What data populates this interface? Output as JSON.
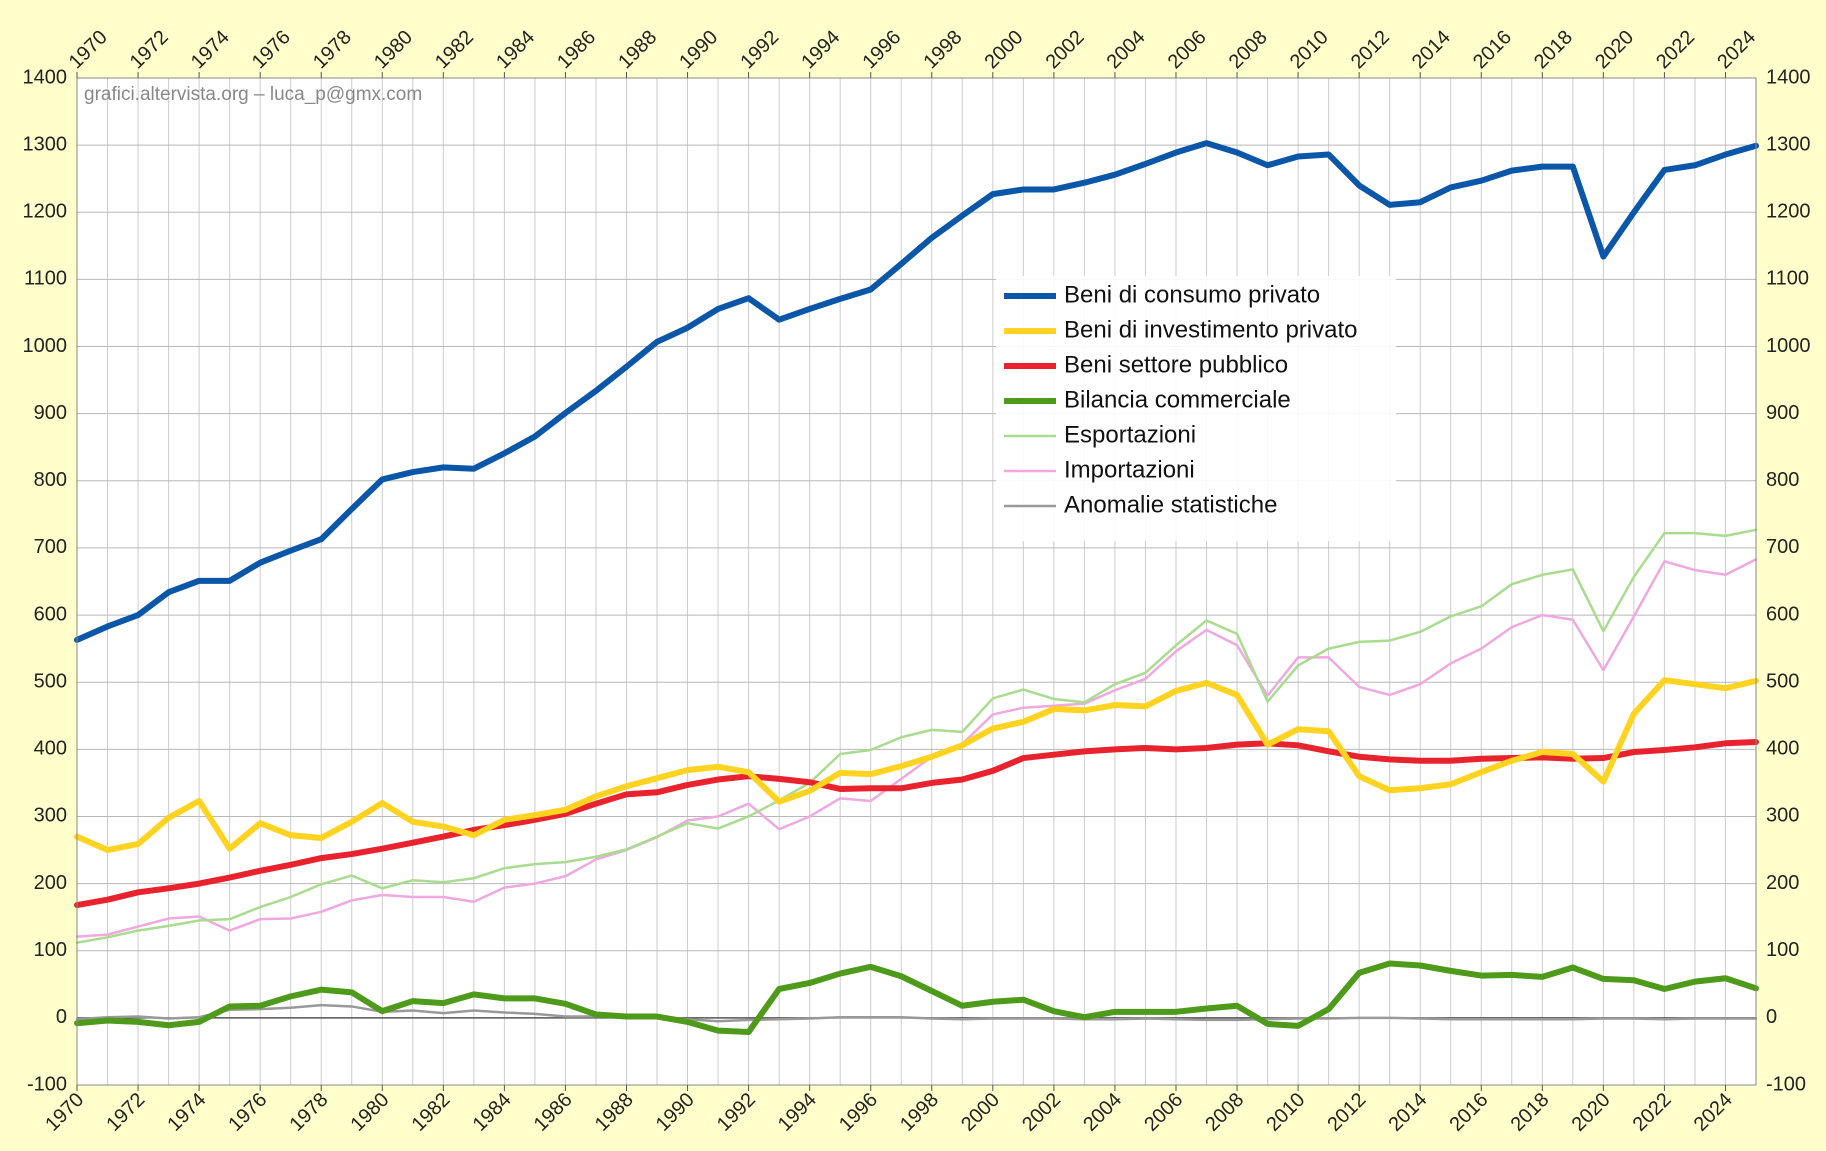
{
  "chart_data": {
    "type": "line",
    "annotation": "grafici.altervista.org – luca_p@gmx.com",
    "x": [
      1970,
      1971,
      1972,
      1973,
      1974,
      1975,
      1976,
      1977,
      1978,
      1979,
      1980,
      1981,
      1982,
      1983,
      1984,
      1985,
      1986,
      1987,
      1988,
      1989,
      1990,
      1991,
      1992,
      1993,
      1994,
      1995,
      1996,
      1997,
      1998,
      1999,
      2000,
      2001,
      2002,
      2003,
      2004,
      2005,
      2006,
      2007,
      2008,
      2009,
      2010,
      2011,
      2012,
      2013,
      2014,
      2015,
      2016,
      2017,
      2018,
      2019,
      2020,
      2021,
      2022,
      2023,
      2024,
      2025
    ],
    "xlim": [
      1970,
      2025
    ],
    "xticks": [
      1970,
      1972,
      1974,
      1976,
      1978,
      1980,
      1982,
      1984,
      1986,
      1988,
      1990,
      1992,
      1994,
      1996,
      1998,
      2000,
      2002,
      2004,
      2006,
      2008,
      2010,
      2012,
      2014,
      2016,
      2018,
      2020,
      2022,
      2024
    ],
    "ylim": [
      -100,
      1400
    ],
    "yticks": [
      -100,
      0,
      100,
      200,
      300,
      400,
      500,
      600,
      700,
      800,
      900,
      1000,
      1100,
      1200,
      1300,
      1400
    ],
    "grid": true,
    "legend": "center-right",
    "series": [
      {
        "name": "Beni di consumo privato",
        "color": "#0a56a8",
        "linewidth": 6,
        "values": [
          563,
          583,
          600,
          634,
          651,
          651,
          678,
          696,
          713,
          758,
          802,
          813,
          820,
          818,
          841,
          866,
          901,
          934,
          970,
          1007,
          1028,
          1056,
          1072,
          1040,
          1056,
          1071,
          1085,
          1123,
          1162,
          1195,
          1227,
          1234,
          1234,
          1244,
          1256,
          1272,
          1289,
          1303,
          1289,
          1270,
          1283,
          1286,
          1240,
          1211,
          1215,
          1237,
          1247,
          1262,
          1268,
          1268,
          1134,
          1200,
          1263,
          1270,
          1286,
          1299
        ]
      },
      {
        "name": "Beni di investimento privato",
        "color": "#ffd320",
        "linewidth": 6,
        "values": [
          270,
          250,
          259,
          298,
          323,
          252,
          290,
          272,
          268,
          292,
          320,
          292,
          285,
          272,
          295,
          302,
          310,
          330,
          345,
          357,
          369,
          374,
          366,
          322,
          338,
          365,
          363,
          375,
          389,
          406,
          431,
          441,
          460,
          458,
          466,
          464,
          487,
          499,
          481,
          407,
          430,
          427,
          360,
          339,
          342,
          348,
          366,
          383,
          396,
          393,
          352,
          453,
          503,
          497,
          491,
          502
        ]
      },
      {
        "name": "Beni settore pubblico",
        "color": "#e8232d",
        "linewidth": 6,
        "values": [
          168,
          176,
          187,
          193,
          200,
          209,
          219,
          228,
          238,
          244,
          252,
          261,
          270,
          280,
          287,
          295,
          304,
          319,
          333,
          336,
          347,
          355,
          360,
          356,
          351,
          341,
          342,
          342,
          350,
          355,
          368,
          387,
          392,
          397,
          400,
          402,
          400,
          402,
          407,
          409,
          406,
          397,
          389,
          385,
          383,
          383,
          386,
          387,
          388,
          386,
          387,
          396,
          399,
          403,
          409,
          411
        ]
      },
      {
        "name": "Bilancia commerciale",
        "color": "#4e9a1a",
        "linewidth": 6,
        "values": [
          -8,
          -4,
          -6,
          -11,
          -6,
          17,
          18,
          32,
          42,
          38,
          10,
          25,
          22,
          35,
          29,
          29,
          21,
          5,
          2,
          2,
          -6,
          -19,
          -21,
          43,
          52,
          66,
          76,
          62,
          40,
          18,
          24,
          27,
          10,
          1,
          9,
          9,
          9,
          14,
          18,
          -9,
          -12,
          13,
          67,
          81,
          78,
          70,
          63,
          64,
          61,
          75,
          58,
          56,
          43,
          54,
          59,
          44
        ]
      },
      {
        "name": "Esportazioni",
        "color": "#a9dc8e",
        "linewidth": 2.5,
        "values": [
          112,
          120,
          130,
          137,
          145,
          147,
          165,
          180,
          199,
          212,
          193,
          205,
          202,
          208,
          223,
          229,
          232,
          240,
          251,
          270,
          290,
          282,
          300,
          324,
          350,
          393,
          399,
          418,
          429,
          426,
          476,
          489,
          475,
          470,
          497,
          514,
          555,
          592,
          572,
          471,
          525,
          550,
          560,
          562,
          575,
          598,
          613,
          646,
          660,
          668,
          576,
          657,
          722,
          722,
          718,
          727
        ]
      },
      {
        "name": "Importazioni",
        "color": "#f0a8e0",
        "linewidth": 2.5,
        "values": [
          121,
          124,
          136,
          148,
          151,
          130,
          147,
          148,
          158,
          175,
          183,
          180,
          180,
          173,
          194,
          200,
          211,
          236,
          250,
          269,
          294,
          300,
          319,
          281,
          300,
          327,
          323,
          356,
          389,
          408,
          452,
          462,
          465,
          468,
          488,
          505,
          546,
          578,
          555,
          480,
          537,
          537,
          493,
          481,
          497,
          528,
          550,
          582,
          600,
          593,
          518,
          598,
          680,
          667,
          660,
          683
        ]
      },
      {
        "name": "Anomalie statistiche",
        "color": "#999999",
        "linewidth": 2.5,
        "values": [
          -2,
          1,
          2,
          -1,
          1,
          12,
          13,
          15,
          19,
          17,
          9,
          11,
          7,
          11,
          8,
          6,
          2,
          2,
          1,
          0,
          -2,
          -5,
          -3,
          -2,
          -1,
          1,
          1,
          1,
          -1,
          -2,
          -1,
          -1,
          -1,
          -2,
          -2,
          -1,
          -2,
          -3,
          -3,
          -2,
          -1,
          -1,
          0,
          0,
          -1,
          -2,
          -2,
          -2,
          -2,
          -2,
          -1,
          -1,
          -2,
          -1,
          -1,
          -1
        ]
      }
    ]
  }
}
